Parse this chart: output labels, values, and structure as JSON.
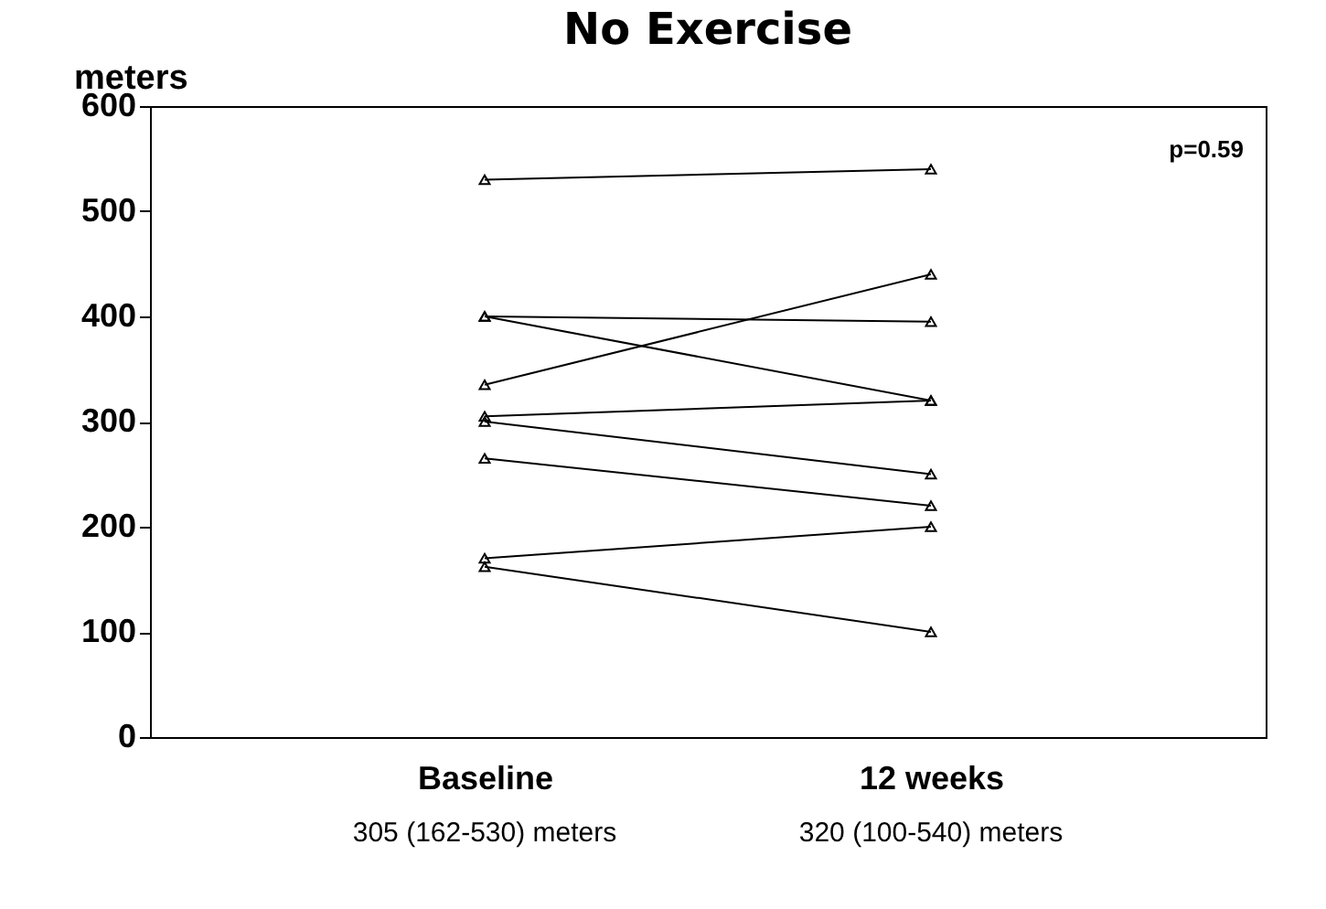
{
  "chart_data": {
    "type": "line",
    "title": "No Exercise",
    "ylabel": "meters",
    "categories": [
      "Baseline",
      "12 weeks"
    ],
    "series": [
      {
        "color": "#000000",
        "values": [
          530,
          540
        ]
      },
      {
        "color": "#000000",
        "values": [
          400,
          395
        ]
      },
      {
        "color": "#000000",
        "values": [
          400,
          320
        ]
      },
      {
        "color": "#000000",
        "values": [
          335,
          440
        ]
      },
      {
        "color": "#000000",
        "values": [
          305,
          320
        ]
      },
      {
        "color": "#000000",
        "values": [
          300,
          250
        ]
      },
      {
        "color": "#000000",
        "values": [
          265,
          220
        ]
      },
      {
        "color": "#000000",
        "values": [
          170,
          200
        ]
      },
      {
        "color": "#000000",
        "values": [
          162,
          100
        ]
      }
    ],
    "ylim": [
      0,
      600
    ],
    "yticks": [
      0,
      100,
      200,
      300,
      400,
      500,
      600
    ],
    "grid": false,
    "legend": false,
    "marker": "triangle",
    "line_style": "solid",
    "annotations": [
      "p=0.59",
      "305 (162-530) meters",
      "320 (100-540) meters"
    ]
  }
}
